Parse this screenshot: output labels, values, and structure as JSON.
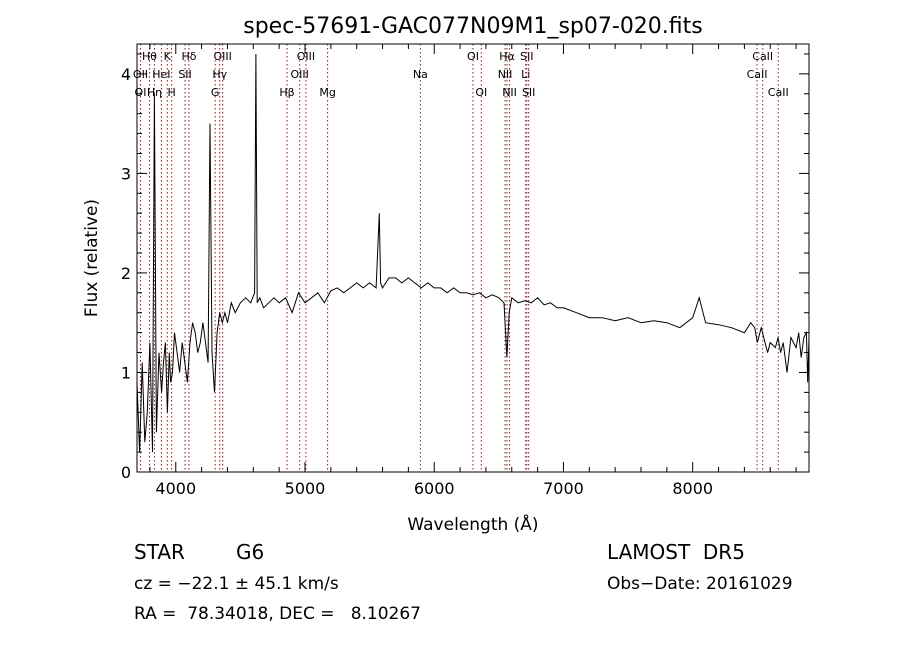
{
  "chart_data": {
    "type": "line",
    "title": "spec-57691-GAC077N09M1_sp07-020.fits",
    "xlabel": "Wavelength (Å)",
    "ylabel": "Flux (relative)",
    "xlim": [
      3700,
      8900
    ],
    "ylim": [
      0,
      4.3
    ],
    "xticks": [
      4000,
      5000,
      6000,
      7000,
      8000
    ],
    "yticks": [
      0,
      1,
      2,
      3,
      4
    ],
    "line_color": "#000000",
    "marker_color": "#8b1a1a",
    "series": [
      {
        "x": [
          3700,
          3720,
          3740,
          3760,
          3780,
          3800,
          3820,
          3835,
          3850,
          3870,
          3890,
          3905,
          3920,
          3935,
          3950,
          3960,
          3975,
          3990,
          4010,
          4030,
          4050,
          4070,
          4090,
          4110,
          4130,
          4150,
          4170,
          4190,
          4210,
          4230,
          4250,
          4265,
          4280,
          4300,
          4320,
          4340,
          4360,
          4380,
          4400,
          4430,
          4460,
          4500,
          4540,
          4580,
          4610,
          4620,
          4630,
          4650,
          4680,
          4720,
          4760,
          4800,
          4850,
          4900,
          4950,
          5000,
          5050,
          5100,
          5150,
          5200,
          5250,
          5300,
          5350,
          5400,
          5450,
          5500,
          5550,
          5575,
          5585,
          5600,
          5650,
          5700,
          5750,
          5800,
          5850,
          5900,
          5950,
          6000,
          6050,
          6100,
          6150,
          6200,
          6250,
          6300,
          6350,
          6400,
          6450,
          6500,
          6540,
          6562,
          6580,
          6600,
          6650,
          6700,
          6750,
          6800,
          6850,
          6900,
          6950,
          7000,
          7100,
          7200,
          7300,
          7400,
          7500,
          7600,
          7700,
          7800,
          7900,
          8000,
          8050,
          8100,
          8200,
          8300,
          8400,
          8450,
          8480,
          8500,
          8530,
          8550,
          8580,
          8600,
          8640,
          8660,
          8680,
          8700,
          8730,
          8760,
          8800,
          8820,
          8840,
          8860,
          8880,
          8890,
          8900
        ],
        "y": [
          0.9,
          0.2,
          1.1,
          0.3,
          0.6,
          1.3,
          0.2,
          3.8,
          0.4,
          1.2,
          0.8,
          1.1,
          1.3,
          0.6,
          1.2,
          0.9,
          1.0,
          1.4,
          1.2,
          1.0,
          1.3,
          1.1,
          0.9,
          1.3,
          1.5,
          1.4,
          1.2,
          1.3,
          1.5,
          1.3,
          1.1,
          3.5,
          1.2,
          0.8,
          1.4,
          1.6,
          1.5,
          1.6,
          1.5,
          1.7,
          1.6,
          1.7,
          1.75,
          1.7,
          1.8,
          4.2,
          1.7,
          1.75,
          1.65,
          1.7,
          1.75,
          1.7,
          1.75,
          1.6,
          1.8,
          1.7,
          1.75,
          1.8,
          1.7,
          1.82,
          1.85,
          1.8,
          1.85,
          1.9,
          1.85,
          1.9,
          1.85,
          2.6,
          1.9,
          1.85,
          1.95,
          1.95,
          1.9,
          1.95,
          1.9,
          1.85,
          1.9,
          1.85,
          1.85,
          1.8,
          1.85,
          1.8,
          1.8,
          1.78,
          1.8,
          1.75,
          1.78,
          1.75,
          1.7,
          1.15,
          1.6,
          1.75,
          1.7,
          1.72,
          1.7,
          1.75,
          1.68,
          1.7,
          1.65,
          1.65,
          1.6,
          1.55,
          1.55,
          1.52,
          1.55,
          1.5,
          1.52,
          1.5,
          1.45,
          1.55,
          1.75,
          1.5,
          1.48,
          1.45,
          1.4,
          1.5,
          1.45,
          1.3,
          1.45,
          1.35,
          1.2,
          1.3,
          1.25,
          1.35,
          1.2,
          1.3,
          1.0,
          1.35,
          1.25,
          1.4,
          1.15,
          1.35,
          1.4,
          0.9,
          1.35
        ]
      }
    ],
    "markers": [
      {
        "label": "Hθ",
        "x": 3797,
        "row": 0
      },
      {
        "label": "K",
        "x": 3934,
        "row": 0
      },
      {
        "label": "Hδ",
        "x": 4102,
        "row": 0
      },
      {
        "label": "OIII",
        "x": 4363,
        "row": 0
      },
      {
        "label": "OIII",
        "x": 5007,
        "row": 0
      },
      {
        "label": "OI",
        "x": 6300,
        "row": 0
      },
      {
        "label": "Hα",
        "x": 6563,
        "row": 0
      },
      {
        "label": "SII",
        "x": 6716,
        "row": 0
      },
      {
        "label": "CaII",
        "x": 8542,
        "row": 0
      },
      {
        "label": "OII",
        "x": 3727,
        "row": 1
      },
      {
        "label": "HeI",
        "x": 3889,
        "row": 1
      },
      {
        "label": "SII",
        "x": 4072,
        "row": 1
      },
      {
        "label": "Hγ",
        "x": 4340,
        "row": 1
      },
      {
        "label": "OIII",
        "x": 4959,
        "row": 1
      },
      {
        "label": "Na",
        "x": 5893,
        "row": 1
      },
      {
        "label": "NII",
        "x": 6548,
        "row": 1
      },
      {
        "label": "Li",
        "x": 6708,
        "row": 1
      },
      {
        "label": "CaII",
        "x": 8498,
        "row": 1
      },
      {
        "label": "OI",
        "x": 3727,
        "row": 2
      },
      {
        "label": "Hη",
        "x": 3835,
        "row": 2
      },
      {
        "label": "H",
        "x": 3968,
        "row": 2
      },
      {
        "label": "G",
        "x": 4305,
        "row": 2
      },
      {
        "label": "Hβ",
        "x": 4861,
        "row": 2
      },
      {
        "label": "Mg",
        "x": 5175,
        "row": 2
      },
      {
        "label": "OI",
        "x": 6364,
        "row": 2
      },
      {
        "label": "NII",
        "x": 6583,
        "row": 2
      },
      {
        "label": "SII",
        "x": 6731,
        "row": 2
      },
      {
        "label": "CaII",
        "x": 8662,
        "row": 2
      }
    ]
  },
  "info": {
    "object_class": "STAR",
    "subclass": "G6",
    "survey": "LAMOST  DR5",
    "velocity": "cz = −22.1 ± 45.1 km/s",
    "obs_date": "Obs−Date: 20161029",
    "coords": "RA =  78.34018, DEC =   8.10267"
  }
}
